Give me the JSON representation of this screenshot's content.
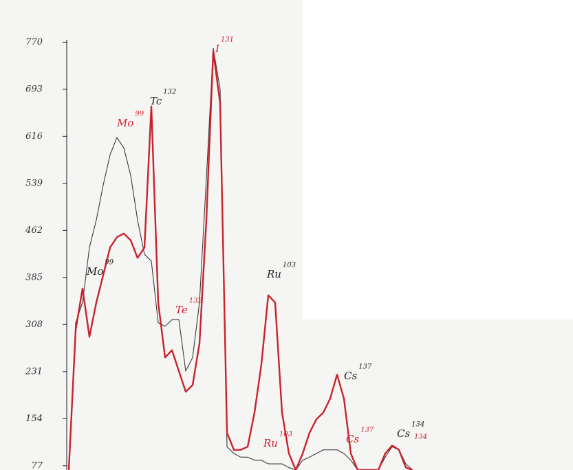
{
  "chart_data": {
    "type": "line",
    "categories": [
      null,
      null,
      null,
      null,
      null,
      null,
      null,
      null,
      null,
      null,
      null,
      null,
      null,
      null,
      null,
      null,
      null,
      null,
      null,
      null,
      null,
      null,
      null,
      null,
      null,
      null,
      null,
      null,
      null,
      null,
      null,
      null,
      null,
      null,
      null,
      null,
      null,
      null,
      null,
      null,
      null,
      null,
      null,
      null,
      null,
      null,
      null,
      null,
      null,
      null,
      null
    ],
    "series": [
      {
        "name": null,
        "color": "#3a3a3a",
        "values": [
          70,
          311,
          344,
          434,
          479,
          536,
          586,
          614,
          597,
          552,
          479,
          423,
          412,
          311,
          305,
          316,
          316,
          232,
          254,
          344,
          547,
          760,
          693,
          108,
          97,
          91,
          91,
          86,
          86,
          80,
          80,
          80,
          74,
          70,
          86,
          91,
          97,
          103,
          103,
          103,
          97,
          86,
          70,
          70,
          70,
          70,
          91,
          108,
          103,
          80,
          70
        ]
      },
      {
        "name": null,
        "color": "#c8232b",
        "values": [
          70,
          299,
          367,
          288,
          344,
          389,
          434,
          451,
          457,
          446,
          417,
          434,
          665,
          344,
          254,
          266,
          232,
          198,
          209,
          277,
          479,
          755,
          670,
          131,
          103,
          103,
          108,
          164,
          243,
          356,
          344,
          164,
          97,
          70,
          97,
          131,
          153,
          164,
          187,
          226,
          187,
          97,
          70,
          70,
          70,
          70,
          97,
          110,
          103,
          74,
          70
        ]
      }
    ],
    "ylim": [
      70,
      775
    ],
    "yticks": [
      {
        "value": 77,
        "label": "77"
      },
      {
        "value": 154,
        "label": "154"
      },
      {
        "value": 231,
        "label": "231"
      },
      {
        "value": 308,
        "label": "308"
      },
      {
        "value": 385,
        "label": "385"
      },
      {
        "value": 462,
        "label": "462"
      },
      {
        "value": 539,
        "label": "539"
      },
      {
        "value": 616,
        "label": "616"
      },
      {
        "value": 693,
        "label": "693"
      },
      {
        "value": 770,
        "label": "770"
      }
    ],
    "annotations": [
      {
        "text": "Mo",
        "sup": "99",
        "color": "#222222"
      },
      {
        "text": "Mo",
        "sup": "99",
        "color": "#d0202a"
      },
      {
        "text": "Tc",
        "sup": "132",
        "color": "#222222"
      },
      {
        "text": "Te",
        "sup": "132",
        "color": "#d0202a"
      },
      {
        "text": "I",
        "sup": "131",
        "color": "#d0202a"
      },
      {
        "text": "Ru",
        "sup": "103",
        "color": "#222222"
      },
      {
        "text": "Ru",
        "sup": "103",
        "color": "#d0202a"
      },
      {
        "text": "Cs",
        "sup": "137",
        "color": "#222222"
      },
      {
        "text": "Cs",
        "sup": "137",
        "color": "#d0202a"
      },
      {
        "text": "Cs",
        "sup": "134",
        "color": "#222222"
      },
      {
        "text": "",
        "sup": "134",
        "color": "#d0202a"
      }
    ]
  }
}
